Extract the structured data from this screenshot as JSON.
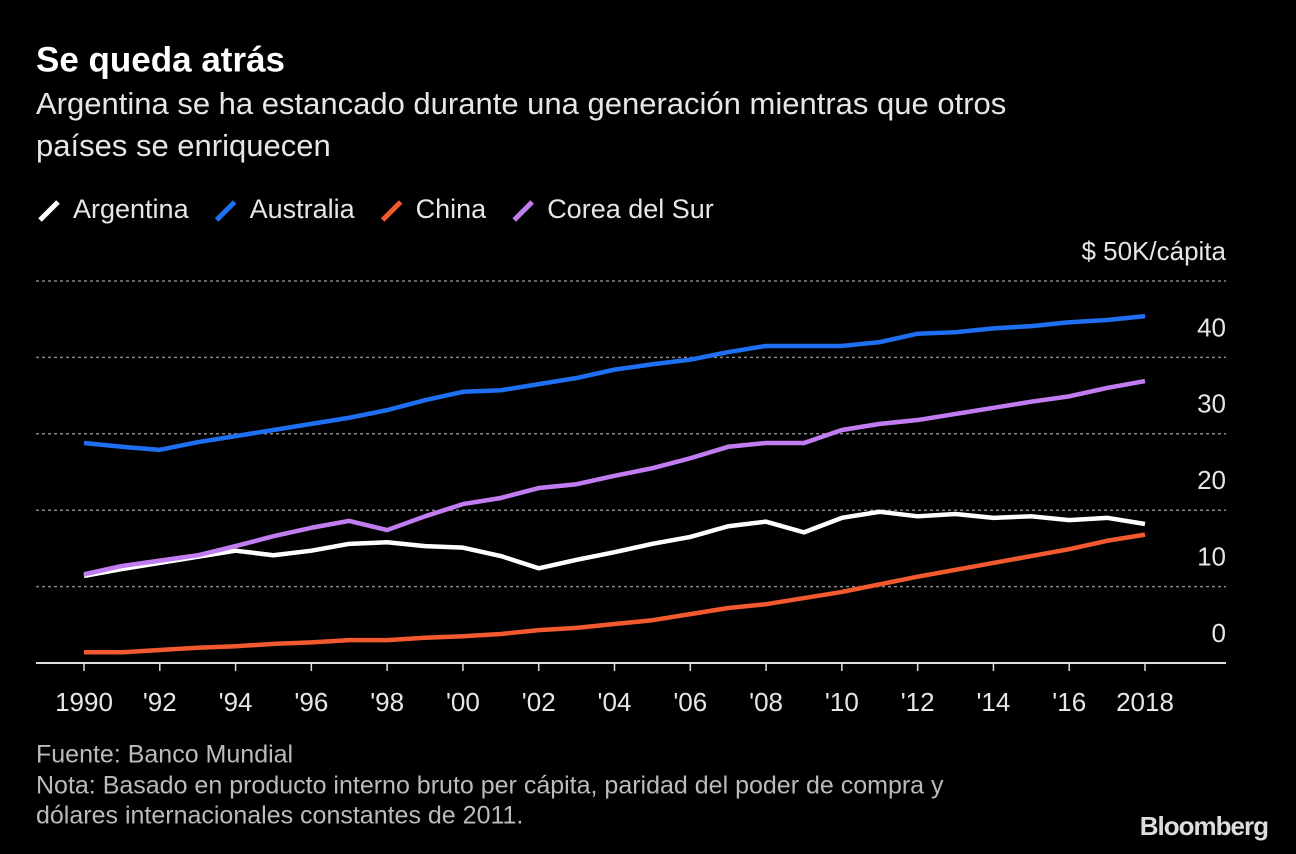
{
  "chart_data": {
    "type": "line",
    "title": "Se queda atrás",
    "subtitle": [
      "Argentina se ha estancado durante una generación mientras que otros",
      "países se enriquecen"
    ],
    "x": [
      1990,
      1991,
      1992,
      1993,
      1994,
      1995,
      1996,
      1997,
      1998,
      1999,
      2000,
      2001,
      2002,
      2003,
      2004,
      2005,
      2006,
      2007,
      2008,
      2009,
      2010,
      2011,
      2012,
      2013,
      2014,
      2015,
      2016,
      2017,
      2018
    ],
    "xlim": [
      1990,
      2018
    ],
    "xticks": [
      1990,
      {
        "value": 1992,
        "label": "'92"
      },
      {
        "value": 1994,
        "label": "'94"
      },
      {
        "value": 1996,
        "label": "'96"
      },
      {
        "value": 1998,
        "label": "'98"
      },
      {
        "value": 2000,
        "label": "'00"
      },
      {
        "value": 2002,
        "label": "'02"
      },
      {
        "value": 2004,
        "label": "'04"
      },
      {
        "value": 2006,
        "label": "'06"
      },
      {
        "value": 2008,
        "label": "'08"
      },
      {
        "value": 2010,
        "label": "'10"
      },
      {
        "value": 2012,
        "label": "'12"
      },
      {
        "value": 2014,
        "label": "'14"
      },
      {
        "value": 2016,
        "label": "'16"
      },
      2018
    ],
    "ylim": [
      0,
      50
    ],
    "yticks": [
      0,
      10,
      20,
      30,
      40,
      {
        "value": 50,
        "label": "$ 50K/cápita"
      }
    ],
    "grid": true,
    "series": [
      {
        "name": "Argentina",
        "color": "#ffffff",
        "values": [
          11.4,
          12.3,
          13.1,
          13.9,
          14.7,
          14.1,
          14.7,
          15.6,
          15.8,
          15.3,
          15.1,
          14.0,
          12.4,
          13.5,
          14.5,
          15.6,
          16.5,
          17.9,
          18.5,
          17.1,
          19.0,
          19.8,
          19.2,
          19.5,
          19.0,
          19.2,
          18.7,
          19.0,
          18.2
        ]
      },
      {
        "name": "Australia",
        "color": "#1f6ff2",
        "values": [
          28.8,
          28.3,
          27.9,
          28.9,
          29.7,
          30.5,
          31.3,
          32.1,
          33.1,
          34.4,
          35.5,
          35.7,
          36.5,
          37.3,
          38.4,
          39.1,
          39.7,
          40.7,
          41.5,
          41.5,
          41.5,
          42.0,
          43.1,
          43.3,
          43.8,
          44.1,
          44.6,
          44.9,
          45.4
        ]
      },
      {
        "name": "China",
        "color": "#f2592f",
        "values": [
          1.4,
          1.4,
          1.7,
          2.0,
          2.2,
          2.5,
          2.7,
          3.0,
          3.0,
          3.3,
          3.5,
          3.8,
          4.3,
          4.6,
          5.1,
          5.6,
          6.4,
          7.2,
          7.7,
          8.5,
          9.3,
          10.3,
          11.3,
          12.2,
          13.1,
          14.0,
          14.9,
          16.0,
          16.8
        ]
      },
      {
        "name": "Corea del Sur",
        "color": "#c27cf2",
        "values": [
          11.6,
          12.7,
          13.4,
          14.1,
          15.3,
          16.6,
          17.7,
          18.6,
          17.4,
          19.2,
          20.8,
          21.6,
          22.9,
          23.4,
          24.5,
          25.5,
          26.8,
          28.3,
          28.8,
          28.8,
          30.5,
          31.3,
          31.8,
          32.6,
          33.4,
          34.2,
          34.9,
          36.0,
          36.9
        ]
      }
    ],
    "source": "Fuente: Banco Mundial",
    "note": [
      "Nota: Basado en producto interno bruto per cápita, paridad del poder de compra y",
      "dólares internacionales constantes de 2011."
    ],
    "brand": "Bloomberg"
  }
}
